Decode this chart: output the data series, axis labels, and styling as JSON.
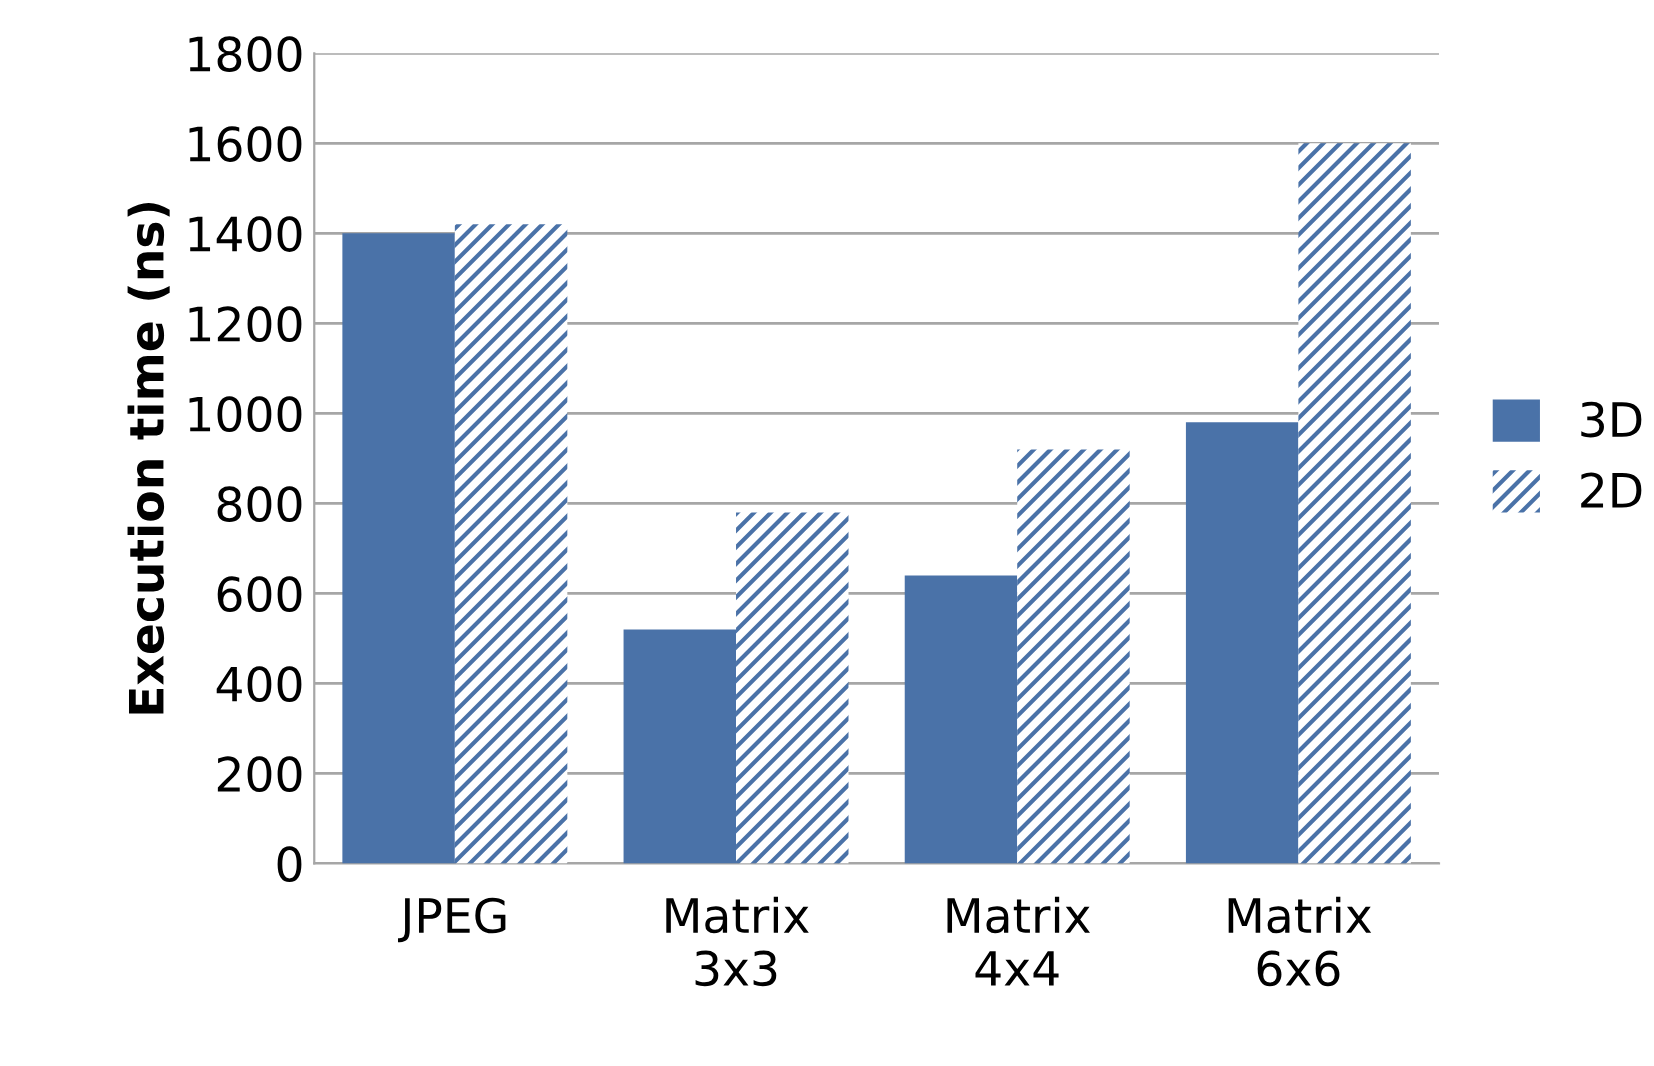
{
  "chart_data": {
    "type": "bar",
    "ylabel": "Execution time (ns)",
    "categories": [
      "JPEG",
      "Matrix\n3x3",
      "Matrix\n4x4",
      "Matrix\n6x6"
    ],
    "series": [
      {
        "name": "3D",
        "color": "#4a72a8",
        "values": [
          1400,
          520,
          640,
          980
        ]
      },
      {
        "name": "2D",
        "color": "#4a72a8",
        "values": [
          1420,
          780,
          920,
          1600
        ]
      }
    ],
    "ylim": [
      0,
      1800
    ],
    "yticks": [
      0,
      200,
      400,
      600,
      800,
      1000,
      1200,
      1400,
      1600,
      1800
    ],
    "grid": "y",
    "legend": "right"
  }
}
